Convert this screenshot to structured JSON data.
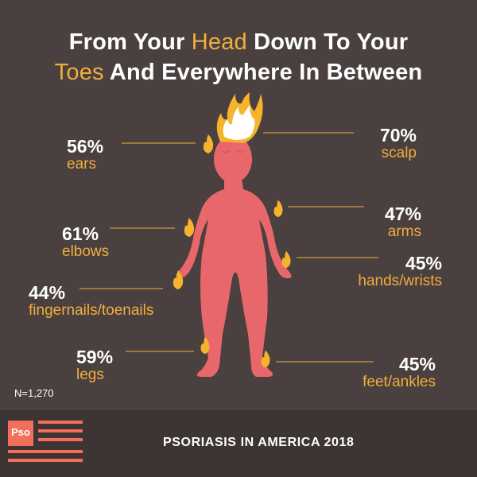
{
  "title": {
    "part1": "From Your ",
    "highlight1": "Head",
    "part2": " Down To Your",
    "highlight2": "Toes",
    "part3": " And Everywhere In Between"
  },
  "stats": [
    {
      "id": "scalp",
      "pct": "70%",
      "label": "scalp"
    },
    {
      "id": "ears",
      "pct": "56%",
      "label": "ears"
    },
    {
      "id": "arms",
      "pct": "47%",
      "label": "arms"
    },
    {
      "id": "elbows",
      "pct": "61%",
      "label": "elbows"
    },
    {
      "id": "hands",
      "pct": "45%",
      "label": "hands/wrists"
    },
    {
      "id": "nails",
      "pct": "44%",
      "label": "fingernails/toenails"
    },
    {
      "id": "legs",
      "pct": "59%",
      "label": "legs"
    },
    {
      "id": "feet",
      "pct": "45%",
      "label": "feet/ankles"
    }
  ],
  "sample": "N=1,270",
  "footer": {
    "logo": "Pso",
    "title": "PSORIASIS IN AMERICA 2018"
  },
  "colors": {
    "background": "#4a4040",
    "footer": "#3d3434",
    "accent": "#f0ae3d",
    "body": "#e8676a",
    "flame": "#f7b32b",
    "logo": "#f26f5b"
  },
  "icons": [
    "human-figure-icon",
    "flame-icon",
    "pso-logo-icon"
  ]
}
